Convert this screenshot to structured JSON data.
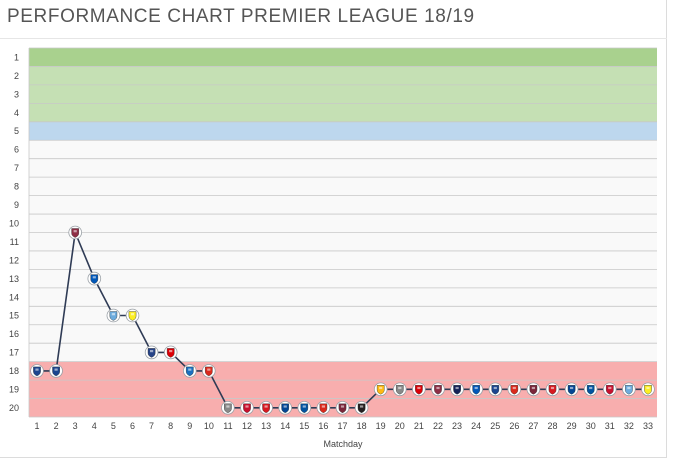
{
  "page": {
    "title": "PERFORMANCE CHART PREMIER LEAGUE 18/19"
  },
  "chart_data": {
    "type": "line",
    "title": "PERFORMANCE CHART PREMIER LEAGUE 18/19",
    "xlabel": "Matchday",
    "ylabel": "",
    "x": [
      1,
      2,
      3,
      4,
      5,
      6,
      7,
      8,
      9,
      10,
      11,
      12,
      13,
      14,
      15,
      16,
      17,
      18,
      19,
      20,
      21,
      22,
      23,
      24,
      25,
      26,
      27,
      28,
      29,
      30,
      31,
      32,
      33
    ],
    "xlim": [
      1,
      33
    ],
    "ylim": [
      1,
      20
    ],
    "y_inverted": true,
    "grid": true,
    "series": [
      {
        "values": [
          18,
          18,
          10.5,
          13,
          15,
          15,
          17,
          17,
          18,
          18,
          20,
          20,
          20,
          20,
          20,
          20,
          20,
          20,
          19,
          19,
          19,
          19,
          19,
          19,
          19,
          19,
          19,
          19,
          19,
          19,
          19,
          19,
          19
        ]
      }
    ],
    "zones": [
      {
        "from": 1,
        "to": 1,
        "color": "#a9d18e"
      },
      {
        "from": 2,
        "to": 4,
        "color": "#c5e0b4"
      },
      {
        "from": 5,
        "to": 5,
        "color": "#bdd7ee"
      },
      {
        "from": 6,
        "to": 17,
        "color": "#f9f9f9"
      },
      {
        "from": 18,
        "to": 20,
        "color": "#f8aeae"
      }
    ],
    "opponents": [
      {
        "icon": "crystal-palace-crest-icon",
        "color": "#1b458f"
      },
      {
        "icon": "crystal-palace-crest-icon",
        "color": "#1b458f"
      },
      {
        "icon": "burnley-crest-icon",
        "color": "#8e2e45"
      },
      {
        "icon": "brighton-crest-icon",
        "color": "#0057b8"
      },
      {
        "icon": "manchester-city-crest-icon",
        "color": "#6cabdd"
      },
      {
        "icon": "watford-crest-icon",
        "color": "#fbee23"
      },
      {
        "icon": "everton-crest-icon",
        "color": "#274488"
      },
      {
        "icon": "arsenal-crest-icon",
        "color": "#db0007"
      },
      {
        "icon": "cardiff-crest-icon",
        "color": "#1a6fbf"
      },
      {
        "icon": "bournemouth-crest-icon",
        "color": "#da291c"
      },
      {
        "icon": "fulham-crest-icon",
        "color": "#888888"
      },
      {
        "icon": "liverpool-crest-icon",
        "color": "#c8102e"
      },
      {
        "icon": "southampton-crest-icon",
        "color": "#d71920"
      },
      {
        "icon": "chelsea-crest-icon",
        "color": "#034694"
      },
      {
        "icon": "leicester-crest-icon",
        "color": "#0053a0"
      },
      {
        "icon": "manchester-united-crest-icon",
        "color": "#da291c"
      },
      {
        "icon": "west-ham-crest-icon",
        "color": "#7a263a"
      },
      {
        "icon": "newcastle-crest-icon",
        "color": "#241f20"
      },
      {
        "icon": "wolves-crest-icon",
        "color": "#fdb913"
      },
      {
        "icon": "fulham-crest-icon",
        "color": "#888888"
      },
      {
        "icon": "arsenal-crest-icon",
        "color": "#db0007"
      },
      {
        "icon": "burnley-crest-icon",
        "color": "#8e2e45"
      },
      {
        "icon": "tottenham-crest-icon",
        "color": "#132257"
      },
      {
        "icon": "brighton-crest-icon",
        "color": "#0057b8"
      },
      {
        "icon": "crystal-palace-crest-icon",
        "color": "#1b458f"
      },
      {
        "icon": "manchester-united-crest-icon",
        "color": "#da291c"
      },
      {
        "icon": "west-ham-crest-icon",
        "color": "#7a263a"
      },
      {
        "icon": "southampton-crest-icon",
        "color": "#d71920"
      },
      {
        "icon": "chelsea-crest-icon",
        "color": "#034694"
      },
      {
        "icon": "leicester-crest-icon",
        "color": "#0053a0"
      },
      {
        "icon": "liverpool-crest-icon",
        "color": "#c8102e"
      },
      {
        "icon": "manchester-city-crest-icon",
        "color": "#6cabdd"
      },
      {
        "icon": "watford-crest-icon",
        "color": "#fbee23"
      }
    ],
    "line_color": "#2f3b55"
  }
}
